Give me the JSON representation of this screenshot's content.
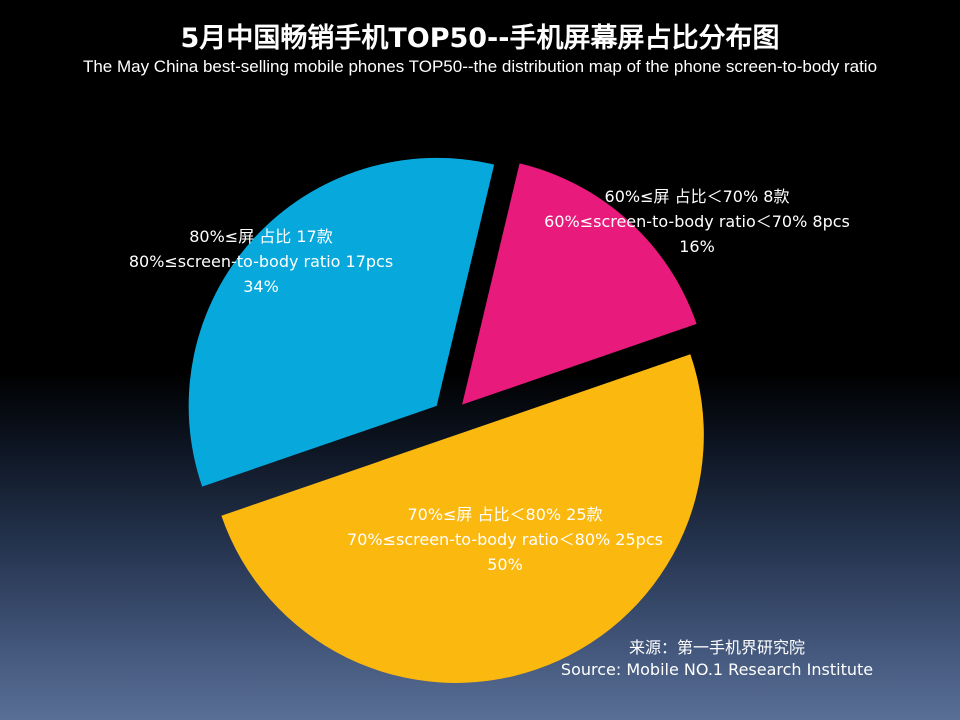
{
  "chart_data": {
    "type": "pie",
    "title": "5月中国畅销手机TOP50--手机屏幕屏占比分布图",
    "subtitle": "The May China best-selling mobile phones TOP50--the distribution map of the phone screen-to-body ratio",
    "slices": [
      {
        "category": "70%≤屏占比＜80%",
        "count": 25,
        "value": 50,
        "label_cn": "70%≤屏 占比＜80% 25款",
        "label_en": "70%≤screen-to-body ratio＜80% 25pcs",
        "label_pct": "50%",
        "color": "#fbb80f"
      },
      {
        "category": "80%≤屏占比",
        "count": 17,
        "value": 34,
        "label_cn": "80%≤屏 占比 17款",
        "label_en": "80%≤screen-to-body ratio 17pcs",
        "label_pct": "34%",
        "color": "#07a9dc"
      },
      {
        "category": "60%≤屏占比＜70%",
        "count": 8,
        "value": 16,
        "label_cn": "60%≤屏 占比＜70% 8款",
        "label_en": "60%≤screen-to-body ratio＜70% 8pcs",
        "label_pct": "16%",
        "color": "#e81a7c"
      }
    ]
  },
  "source": {
    "cn": "来源：第一手机界研究院",
    "en": "Source: Mobile NO.1 Research Institute"
  }
}
